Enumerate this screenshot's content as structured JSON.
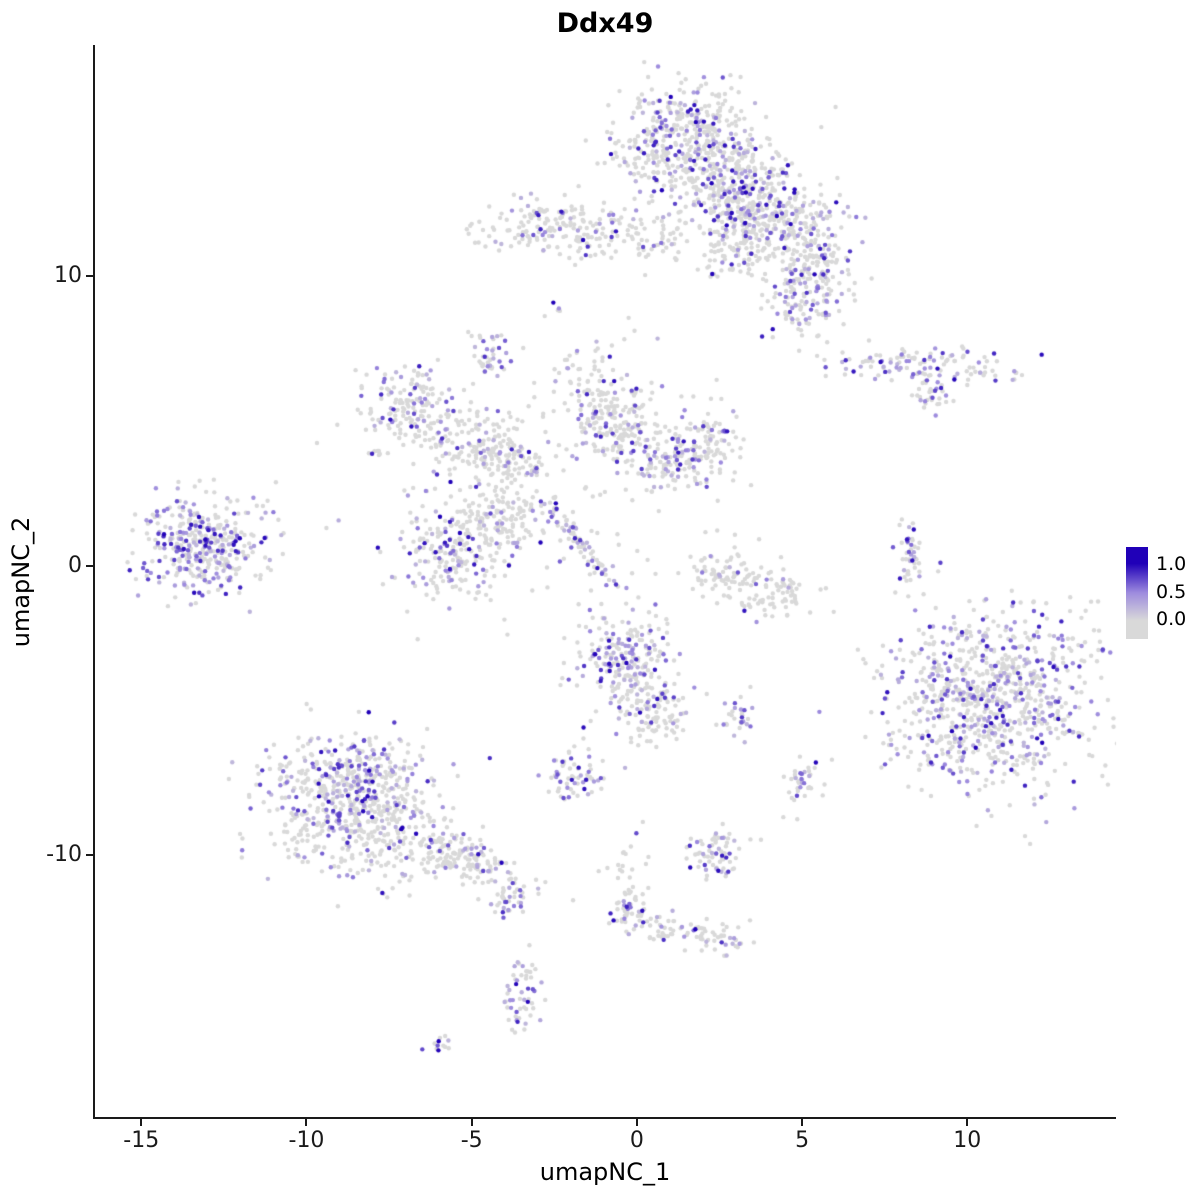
{
  "chart_data": {
    "type": "scatter",
    "title": "Ddx49",
    "xlabel": "umapNC_1",
    "ylabel": "umapNC_2",
    "xlim": [
      -16.4,
      14.5
    ],
    "ylim": [
      -19.1,
      18.0
    ],
    "x_ticks": [
      -15,
      -10,
      -5,
      0,
      5,
      10
    ],
    "y_ticks": [
      -10,
      0,
      10
    ],
    "grid": false,
    "legend": {
      "position": "right",
      "ticks": [
        "1.0",
        "0.5",
        "0.0"
      ]
    },
    "colors": {
      "low": "#D9D9D9",
      "mid": "#9E8CDE",
      "high": "#2000B8",
      "axis": "#1a1a1a",
      "background": "#FFFFFF"
    },
    "point_radius": 2.2,
    "seed": 42,
    "clusters": [
      {
        "x": 1.3,
        "y": 14.9,
        "sx": 1.1,
        "sy": 0.9,
        "n": 320,
        "expr": 0.3
      },
      {
        "x": 2.6,
        "y": 13.5,
        "sx": 1.1,
        "sy": 1.0,
        "n": 380,
        "expr": 0.22
      },
      {
        "x": 3.6,
        "y": 12.2,
        "sx": 0.8,
        "sy": 0.7,
        "n": 140,
        "expr": 0.22
      },
      {
        "x": 4.7,
        "y": 11.9,
        "sx": 0.8,
        "sy": 0.6,
        "n": 130,
        "expr": 0.25
      },
      {
        "x": 5.4,
        "y": 10.3,
        "sx": 0.6,
        "sy": 0.7,
        "n": 120,
        "expr": 0.3
      },
      {
        "x": 5.1,
        "y": 9.1,
        "sx": 0.55,
        "sy": 0.55,
        "n": 100,
        "expr": 0.3
      },
      {
        "x": 3.3,
        "y": 10.9,
        "sx": 0.7,
        "sy": 0.6,
        "n": 110,
        "expr": 0.2
      },
      {
        "x": -2.4,
        "y": 11.7,
        "sx": 1.2,
        "sy": 0.5,
        "n": 180,
        "expr": 0.15
      },
      {
        "x": 0.0,
        "y": 11.2,
        "sx": 0.9,
        "sy": 0.5,
        "n": 60,
        "expr": 0.12
      },
      {
        "x": -2.6,
        "y": 8.9,
        "sx": 0.18,
        "sy": 0.25,
        "n": 5,
        "expr": 0.5
      },
      {
        "x": -4.5,
        "y": 7.4,
        "sx": 0.28,
        "sy": 0.4,
        "n": 40,
        "expr": 0.45
      },
      {
        "x": 8.6,
        "y": 6.9,
        "sx": 1.5,
        "sy": 0.32,
        "n": 125,
        "expr": 0.35,
        "rot": -0.08
      },
      {
        "x": 8.9,
        "y": 5.9,
        "sx": 0.35,
        "sy": 0.3,
        "n": 30,
        "expr": 0.3
      },
      {
        "x": -6.9,
        "y": 5.4,
        "sx": 0.7,
        "sy": 0.85,
        "n": 160,
        "expr": 0.28
      },
      {
        "x": -5.0,
        "y": 4.2,
        "sx": 0.75,
        "sy": 0.6,
        "n": 110,
        "expr": 0.2
      },
      {
        "x": -3.8,
        "y": 3.7,
        "sx": 0.6,
        "sy": 0.5,
        "n": 90,
        "expr": 0.2
      },
      {
        "x": -1.1,
        "y": 5.5,
        "sx": 0.65,
        "sy": 0.95,
        "n": 150,
        "expr": 0.25
      },
      {
        "x": -0.2,
        "y": 4.6,
        "sx": 0.6,
        "sy": 0.6,
        "n": 90,
        "expr": 0.2
      },
      {
        "x": 2.0,
        "y": 4.0,
        "sx": 0.65,
        "sy": 0.6,
        "n": 130,
        "expr": 0.3
      },
      {
        "x": 0.8,
        "y": 3.4,
        "sx": 0.5,
        "sy": 0.45,
        "n": 60,
        "expr": 0.2
      },
      {
        "x": -5.5,
        "y": 0.6,
        "sx": 0.95,
        "sy": 0.95,
        "n": 230,
        "expr": 0.25
      },
      {
        "x": -3.9,
        "y": 1.7,
        "sx": 0.6,
        "sy": 0.6,
        "n": 90,
        "expr": 0.2
      },
      {
        "x": -1.8,
        "y": 0.9,
        "sx": 0.85,
        "sy": 0.14,
        "n": 70,
        "expr": 0.45,
        "rot": -0.95
      },
      {
        "x": -3.2,
        "y": 3.2,
        "sx": 2.6,
        "sy": 2.2,
        "n": 130,
        "expr": 0.08
      },
      {
        "x": -13.1,
        "y": 0.7,
        "sx": 1.0,
        "sy": 0.8,
        "n": 390,
        "expr": 0.45
      },
      {
        "x": 2.7,
        "y": -0.3,
        "sx": 0.6,
        "sy": 0.45,
        "n": 85,
        "expr": 0.05
      },
      {
        "x": 4.2,
        "y": -1.0,
        "sx": 0.6,
        "sy": 0.4,
        "n": 70,
        "expr": 0.05
      },
      {
        "x": 8.3,
        "y": 0.3,
        "sx": 0.28,
        "sy": 0.65,
        "n": 45,
        "expr": 0.5
      },
      {
        "x": 10.7,
        "y": -4.6,
        "sx": 1.6,
        "sy": 1.5,
        "n": 880,
        "expr": 0.33
      },
      {
        "x": -0.4,
        "y": -3.4,
        "sx": 0.75,
        "sy": 0.9,
        "n": 240,
        "expr": 0.35
      },
      {
        "x": 0.5,
        "y": -5.2,
        "sx": 0.5,
        "sy": 0.6,
        "n": 90,
        "expr": 0.15
      },
      {
        "x": -1.9,
        "y": -7.2,
        "sx": 0.45,
        "sy": 0.45,
        "n": 65,
        "expr": 0.4
      },
      {
        "x": 3.0,
        "y": -5.3,
        "sx": 0.3,
        "sy": 0.28,
        "n": 30,
        "expr": 0.4
      },
      {
        "x": 5.0,
        "y": -7.5,
        "sx": 0.3,
        "sy": 0.45,
        "n": 40,
        "expr": 0.2
      },
      {
        "x": -8.7,
        "y": -7.5,
        "sx": 1.2,
        "sy": 0.9,
        "n": 420,
        "expr": 0.35
      },
      {
        "x": -8.3,
        "y": -9.2,
        "sx": 1.4,
        "sy": 0.9,
        "n": 300,
        "expr": 0.18
      },
      {
        "x": -5.3,
        "y": -10.1,
        "sx": 1.1,
        "sy": 0.4,
        "n": 180,
        "expr": 0.2,
        "rot": -0.55
      },
      {
        "x": -3.9,
        "y": -11.6,
        "sx": 0.25,
        "sy": 0.3,
        "n": 25,
        "expr": 0.25
      },
      {
        "x": 2.3,
        "y": -9.9,
        "sx": 0.45,
        "sy": 0.45,
        "n": 70,
        "expr": 0.3
      },
      {
        "x": -0.2,
        "y": -12.1,
        "sx": 0.35,
        "sy": 0.35,
        "n": 45,
        "expr": 0.3
      },
      {
        "x": 0.8,
        "y": -12.5,
        "sx": 0.35,
        "sy": 0.3,
        "n": 30,
        "expr": 0.15
      },
      {
        "x": 2.4,
        "y": -12.9,
        "sx": 0.5,
        "sy": 0.3,
        "n": 50,
        "expr": 0.1
      },
      {
        "x": -0.4,
        "y": -10.3,
        "sx": 0.4,
        "sy": 1.2,
        "n": 25,
        "expr": 0.1
      },
      {
        "x": -3.5,
        "y": -14.8,
        "sx": 0.3,
        "sy": 0.65,
        "n": 55,
        "expr": 0.45
      },
      {
        "x": -6.0,
        "y": -16.6,
        "sx": 0.25,
        "sy": 0.18,
        "n": 12,
        "expr": 0.3
      }
    ]
  }
}
